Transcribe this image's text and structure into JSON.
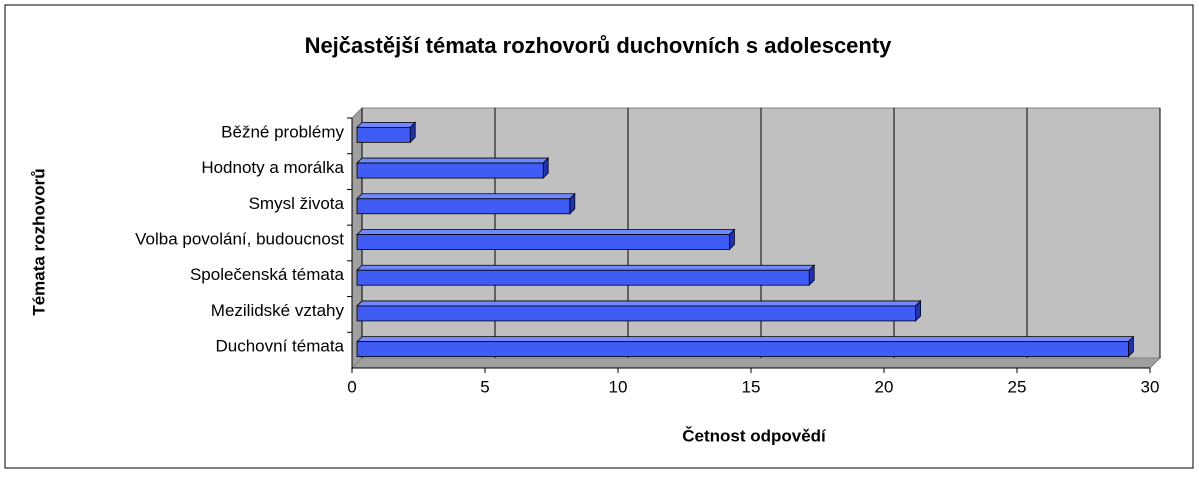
{
  "chart_data": {
    "type": "bar3d-horizontal",
    "title": "Nejčastější témata rozhovorů duchovních s adolescenty",
    "x_label": "Četnost odpovědí",
    "y_label": "Témata rozhovorů",
    "categories": [
      "Běžné problémy",
      "Hodnoty a morálka",
      "Smysl života",
      "Volba povolání, budoucnost",
      "Společenská témata",
      "Mezilidské vztahy",
      "Duchovní témata"
    ],
    "values": [
      2,
      7,
      8,
      14,
      17,
      21,
      29
    ],
    "color": "#3f5cf5",
    "xlim": [
      0,
      30
    ],
    "xticks": [
      0,
      5,
      10,
      15,
      20,
      25,
      30
    ],
    "grid": true
  }
}
